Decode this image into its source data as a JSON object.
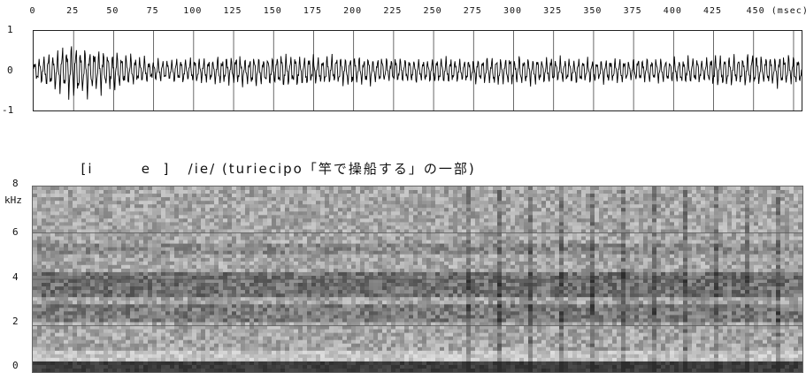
{
  "waveform": {
    "x_ticks": [
      "0",
      "25",
      "50",
      "75",
      "100",
      "125",
      "150",
      "175",
      "200",
      "225",
      "250",
      "275",
      "300",
      "325",
      "350",
      "375",
      "400",
      "425"
    ],
    "x_last_label": "450 (msec)",
    "y_ticks": [
      "1",
      "0",
      "-1"
    ]
  },
  "caption": {
    "phonetic": "[i        e  ]",
    "phonemic": "/ie/",
    "gloss": "(turiecipo「竿で操船する」の一部)"
  },
  "spectrogram": {
    "y_ticks": [
      "8",
      "6",
      "4",
      "2",
      "0"
    ],
    "unit": "kHz"
  },
  "chart_data": {
    "type": "line",
    "xlabel": "",
    "ylabel": "",
    "x_unit": "msec",
    "xlim": [
      0,
      480
    ],
    "ylim": [
      -1,
      1
    ],
    "series": [
      {
        "values_envelope": [
          [
            0,
            0.25
          ],
          [
            25,
            0.7
          ],
          [
            50,
            0.45
          ],
          [
            75,
            0.28
          ],
          [
            100,
            0.3
          ],
          [
            150,
            0.4
          ],
          [
            200,
            0.35
          ],
          [
            250,
            0.3
          ],
          [
            300,
            0.35
          ],
          [
            350,
            0.3
          ],
          [
            400,
            0.3
          ],
          [
            450,
            0.4
          ],
          [
            480,
            0.35
          ]
        ]
      }
    ],
    "spectrogram_ylim_khz": [
      0,
      8
    ]
  }
}
